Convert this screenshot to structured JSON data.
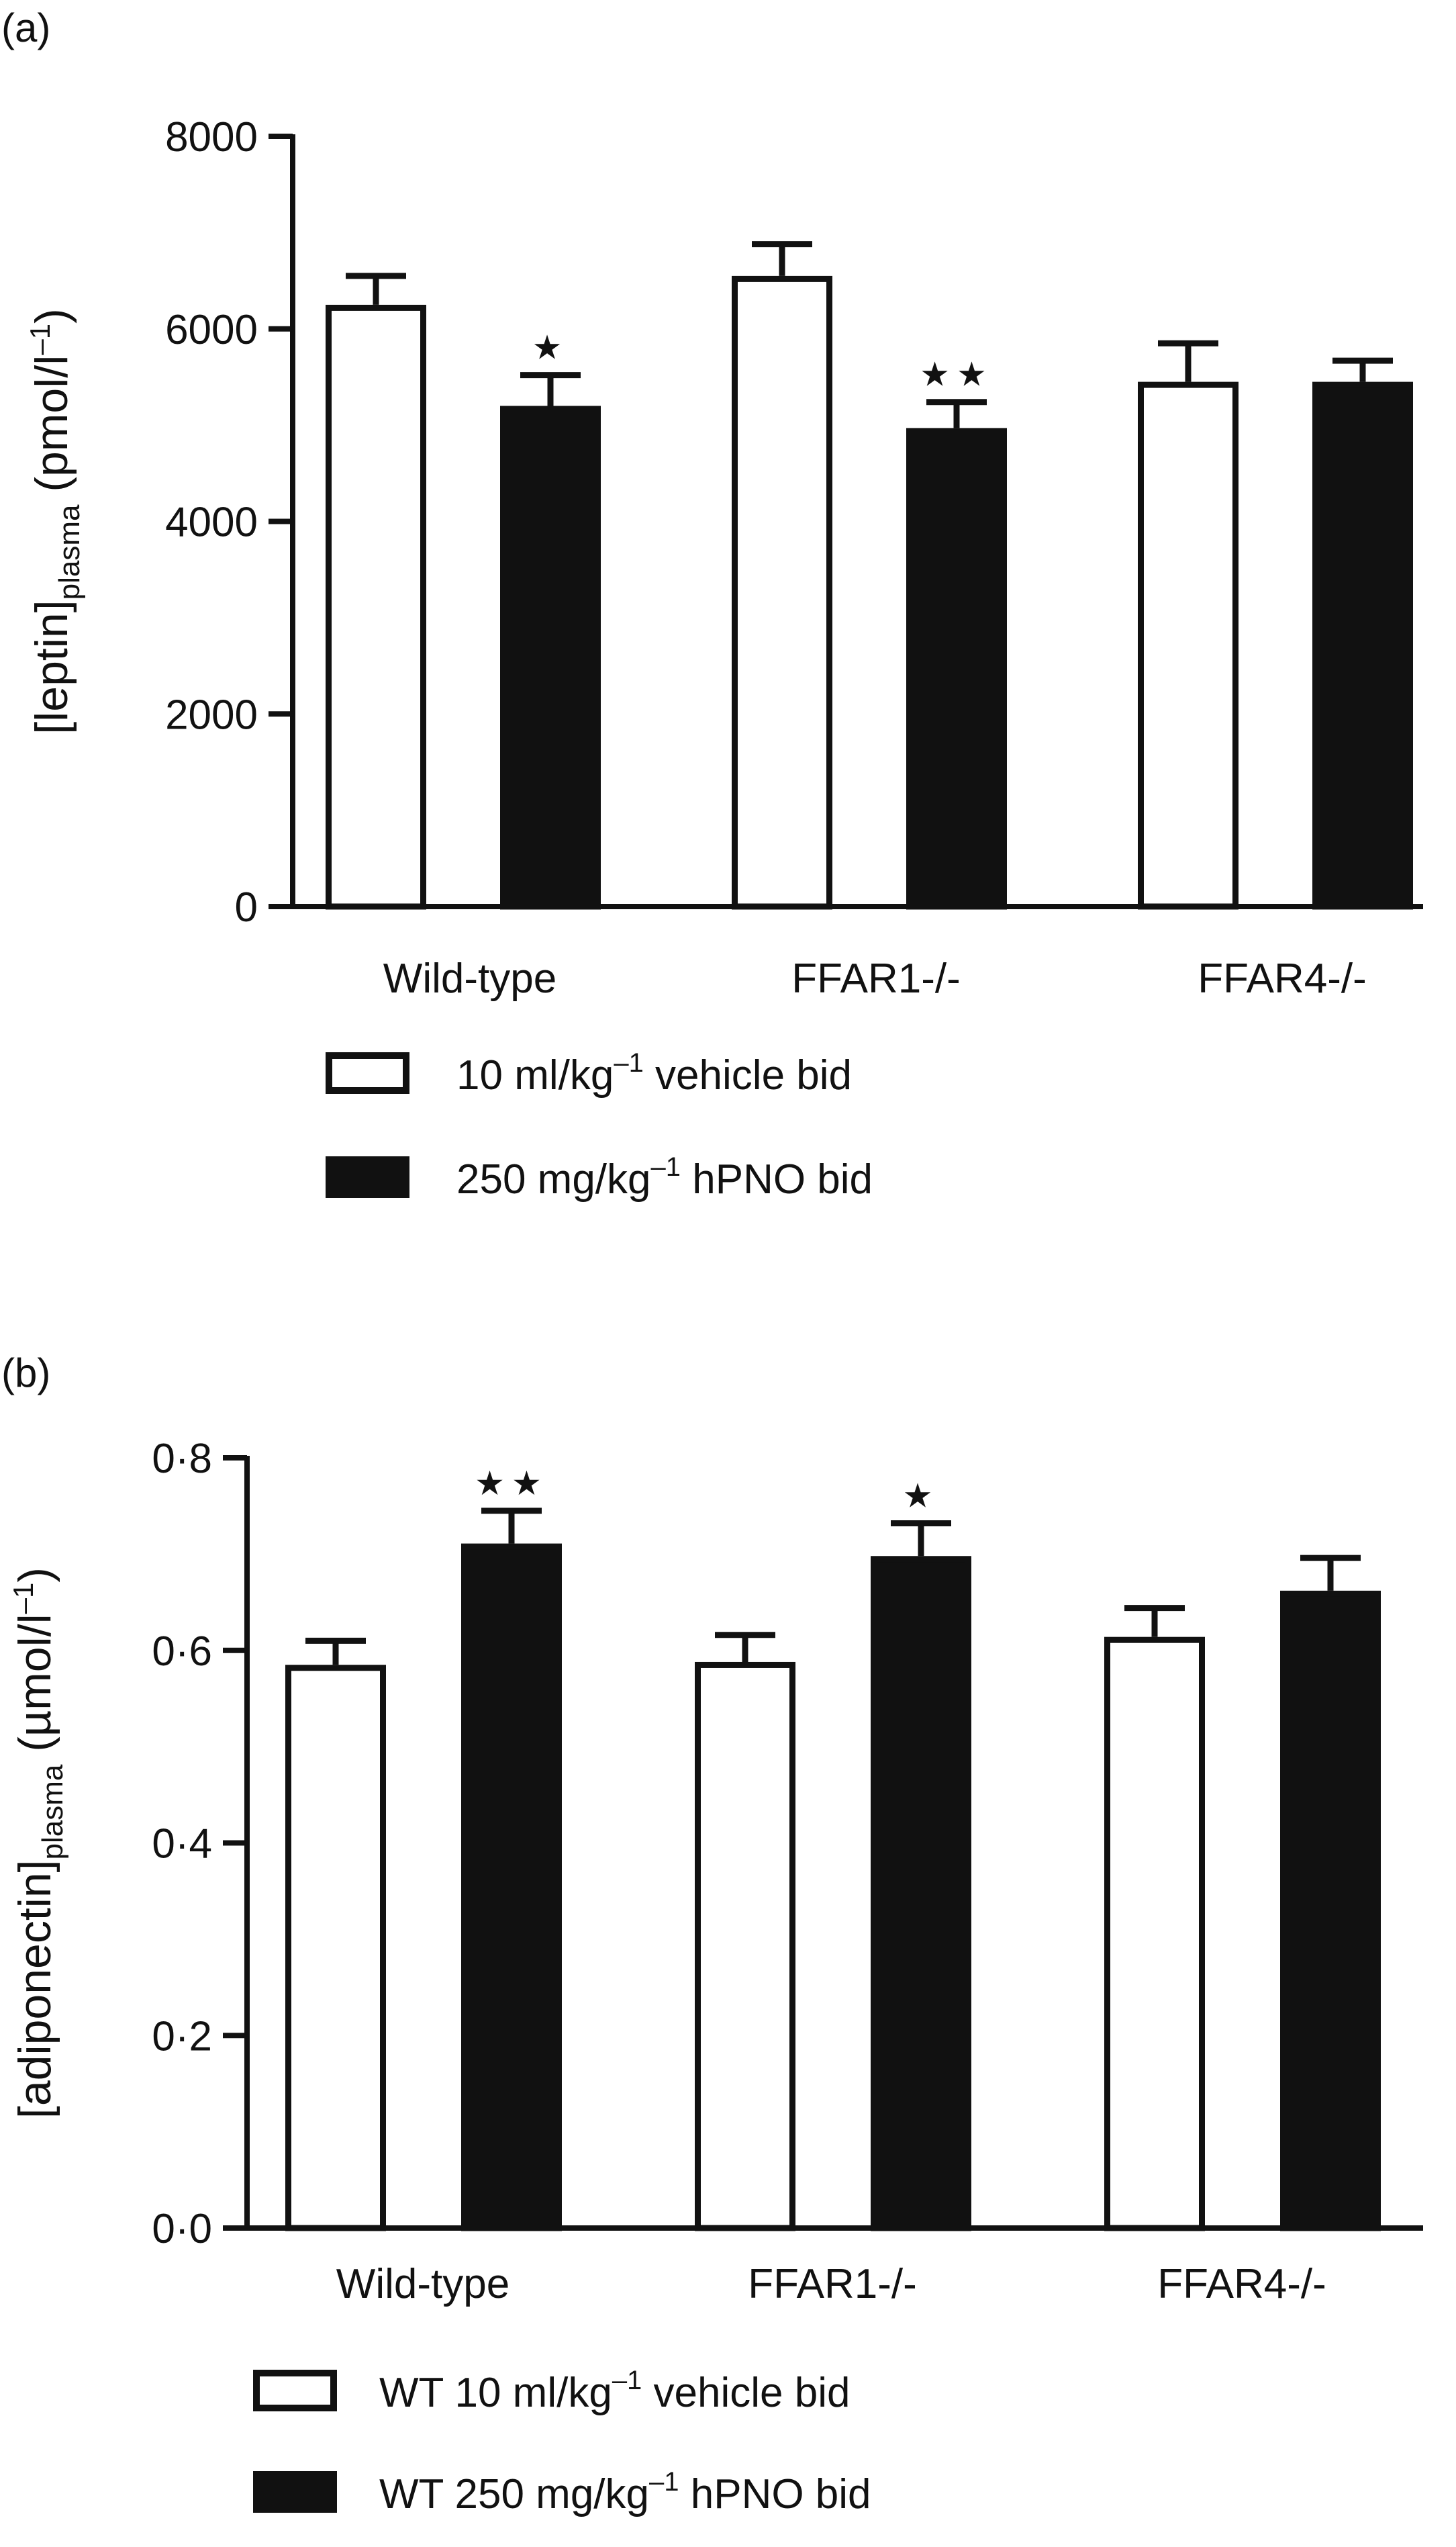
{
  "chart_data": [
    {
      "panel": "(a)",
      "type": "bar",
      "ylabel": "[leptin]",
      "ylabel_subscript": "plasma",
      "ylabel_unit_open": " (pmol/l",
      "ylabel_unit_sup": "–1",
      "ylabel_unit_close": ")",
      "ylim": [
        0,
        8000
      ],
      "yticks": [
        "0",
        "2000",
        "4000",
        "6000",
        "8000"
      ],
      "ytick_values": [
        0,
        2000,
        4000,
        6000,
        8000
      ],
      "categories": [
        "Wild-type",
        "FFAR1-/-",
        "FFAR4-/-"
      ],
      "series": [
        {
          "name": "10 ml/kg vehicle bid",
          "legend_prefix": "10 ml/kg",
          "legend_sup": "–1",
          "legend_suffix": " vehicle bid",
          "style": "open",
          "values": [
            6250,
            6550,
            5450
          ],
          "errors": [
            300,
            330,
            400
          ],
          "significance": [
            "",
            "",
            ""
          ]
        },
        {
          "name": "250 mg/kg hPNO bid",
          "legend_prefix": "250 mg/kg",
          "legend_sup": "–1",
          "legend_suffix": " hPNO bid",
          "style": "filled",
          "values": [
            5200,
            4970,
            5450
          ],
          "errors": [
            320,
            270,
            220
          ],
          "significance": [
            "★",
            "★★",
            ""
          ]
        }
      ],
      "grid": false,
      "legend_placement": "bottom"
    },
    {
      "panel": "(b)",
      "type": "bar",
      "ylabel": "[adiponectin]",
      "ylabel_subscript": "plasma",
      "ylabel_unit_open": " (µmol/l",
      "ylabel_unit_sup": "–1",
      "ylabel_unit_close": ")",
      "ylim": [
        0,
        0.8
      ],
      "yticks": [
        "0·0",
        "0·2",
        "0·4",
        "0·6",
        "0·8"
      ],
      "ytick_values": [
        0,
        0.2,
        0.4,
        0.6,
        0.8
      ],
      "categories": [
        "Wild-type",
        "FFAR1-/-",
        "FFAR4-/-"
      ],
      "series": [
        {
          "name": "WT 10 ml/kg vehicle bid",
          "legend_prefix": "WT 10 ml/kg",
          "legend_sup": "–1",
          "legend_suffix": " vehicle bid",
          "style": "open",
          "values": [
            0.585,
            0.588,
            0.614
          ],
          "errors": [
            0.025,
            0.028,
            0.03
          ],
          "significance": [
            "",
            "",
            ""
          ]
        },
        {
          "name": "WT 250 mg/kg hPNO bid",
          "legend_prefix": "WT 250 mg/kg",
          "legend_sup": "–1",
          "legend_suffix": " hPNO bid",
          "style": "filled",
          "values": [
            0.711,
            0.698,
            0.662
          ],
          "errors": [
            0.034,
            0.034,
            0.034
          ],
          "significance": [
            "★★",
            "★",
            ""
          ]
        }
      ],
      "grid": false,
      "legend_placement": "bottom"
    }
  ],
  "colors": {
    "ink": "#111111",
    "open_fill": "#ffffff",
    "filled_fill": "#111111"
  }
}
